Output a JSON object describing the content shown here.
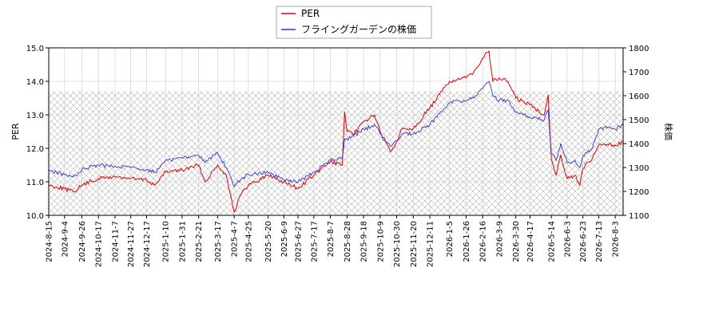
{
  "chart_data": {
    "type": "line",
    "legend": {
      "placement": "top-center",
      "entries": [
        "PER",
        "フライングガーデンの株価"
      ]
    },
    "grid": true,
    "hatch_band": {
      "y_left_range": [
        10.0,
        13.7
      ],
      "note_color": "#999999"
    },
    "y_left": {
      "label": "PER",
      "ylim": [
        10.0,
        15.0
      ],
      "ticks": [
        "10.0",
        "11.0",
        "12.0",
        "13.0",
        "14.0",
        "15.0"
      ]
    },
    "y_right": {
      "label": "株価",
      "ylim": [
        1100,
        1800
      ],
      "ticks": [
        "1100",
        "1200",
        "1300",
        "1400",
        "1500",
        "1600",
        "1700",
        "1800"
      ]
    },
    "x": {
      "start": "2024-08-15",
      "end": "2026-08-13",
      "tick_labels": [
        "2024-8-15",
        "2024-9-4",
        "2024-9-26",
        "2024-10-17",
        "2024-11-7",
        "2024-11-27",
        "2024-12-17",
        "2025-1-10",
        "2025-1-31",
        "2025-2-21",
        "2025-3-17",
        "2025-4-7",
        "2025-4-25",
        "2025-5-20",
        "2025-6-9",
        "2025-6-27",
        "2025-7-17",
        "2025-8-7",
        "2025-8-28",
        "2025-9-18",
        "2025-10-9",
        "2025-10-30",
        "2025-11-20",
        "2025-12-11",
        "2026-1-5",
        "2026-1-26",
        "2026-2-16",
        "2026-3-9",
        "2026-3-30",
        "2026-4-17",
        "2026-5-14",
        "2026-6-3",
        "2026-6-23",
        "2026-7-13",
        "2026-8-3"
      ]
    },
    "series": [
      {
        "name": "PER",
        "axis": "left",
        "color": "#dd0000",
        "points": [
          [
            "2024-08-15",
            10.9
          ],
          [
            "2024-09-04",
            10.8
          ],
          [
            "2024-09-15",
            10.7
          ],
          [
            "2024-09-26",
            10.9
          ],
          [
            "2024-10-17",
            11.1
          ],
          [
            "2024-11-07",
            11.15
          ],
          [
            "2024-11-27",
            11.1
          ],
          [
            "2024-12-17",
            11.05
          ],
          [
            "2024-12-28",
            10.9
          ],
          [
            "2025-01-10",
            11.3
          ],
          [
            "2025-01-31",
            11.35
          ],
          [
            "2025-02-21",
            11.5
          ],
          [
            "2025-03-01",
            11.0
          ],
          [
            "2025-03-17",
            11.5
          ],
          [
            "2025-03-28",
            11.2
          ],
          [
            "2025-04-07",
            10.1
          ],
          [
            "2025-04-15",
            10.6
          ],
          [
            "2025-04-25",
            10.9
          ],
          [
            "2025-05-20",
            11.2
          ],
          [
            "2025-06-09",
            11.0
          ],
          [
            "2025-06-27",
            10.8
          ],
          [
            "2025-07-17",
            11.2
          ],
          [
            "2025-08-07",
            11.6
          ],
          [
            "2025-08-22",
            11.5
          ],
          [
            "2025-08-25",
            13.1
          ],
          [
            "2025-08-28",
            12.5
          ],
          [
            "2025-09-05",
            12.4
          ],
          [
            "2025-09-18",
            12.8
          ],
          [
            "2025-10-02",
            13.0
          ],
          [
            "2025-10-09",
            12.5
          ],
          [
            "2025-10-22",
            11.9
          ],
          [
            "2025-10-30",
            12.2
          ],
          [
            "2025-11-06",
            12.6
          ],
          [
            "2025-11-20",
            12.6
          ],
          [
            "2025-12-11",
            13.2
          ],
          [
            "2025-12-20",
            13.5
          ],
          [
            "2026-01-05",
            14.0
          ],
          [
            "2026-01-26",
            14.1
          ],
          [
            "2026-02-05",
            14.3
          ],
          [
            "2026-02-16",
            14.7
          ],
          [
            "2026-02-24",
            14.9
          ],
          [
            "2026-03-01",
            14.0
          ],
          [
            "2026-03-09",
            14.1
          ],
          [
            "2026-03-20",
            14.0
          ],
          [
            "2026-03-30",
            13.5
          ],
          [
            "2026-04-17",
            13.3
          ],
          [
            "2026-05-05",
            13.0
          ],
          [
            "2026-05-10",
            13.6
          ],
          [
            "2026-05-14",
            11.7
          ],
          [
            "2026-05-20",
            11.2
          ],
          [
            "2026-05-26",
            11.8
          ],
          [
            "2026-06-03",
            11.1
          ],
          [
            "2026-06-13",
            11.2
          ],
          [
            "2026-06-19",
            10.9
          ],
          [
            "2026-06-23",
            11.4
          ],
          [
            "2026-07-05",
            11.7
          ],
          [
            "2026-07-13",
            12.1
          ],
          [
            "2026-07-25",
            12.1
          ],
          [
            "2026-08-03",
            12.1
          ],
          [
            "2026-08-13",
            12.2
          ]
        ]
      },
      {
        "name": "フライングガーデンの株価",
        "axis": "right",
        "color": "#3333cc",
        "points": [
          [
            "2024-08-15",
            1290
          ],
          [
            "2024-09-04",
            1270
          ],
          [
            "2024-09-15",
            1260
          ],
          [
            "2024-09-26",
            1290
          ],
          [
            "2024-10-17",
            1310
          ],
          [
            "2024-11-07",
            1305
          ],
          [
            "2024-11-27",
            1300
          ],
          [
            "2024-12-17",
            1290
          ],
          [
            "2024-12-28",
            1280
          ],
          [
            "2025-01-10",
            1330
          ],
          [
            "2025-01-31",
            1340
          ],
          [
            "2025-02-21",
            1350
          ],
          [
            "2025-03-01",
            1320
          ],
          [
            "2025-03-17",
            1360
          ],
          [
            "2025-03-28",
            1300
          ],
          [
            "2025-04-07",
            1220
          ],
          [
            "2025-04-15",
            1250
          ],
          [
            "2025-04-25",
            1270
          ],
          [
            "2025-05-20",
            1280
          ],
          [
            "2025-06-09",
            1250
          ],
          [
            "2025-06-27",
            1240
          ],
          [
            "2025-07-17",
            1280
          ],
          [
            "2025-08-07",
            1330
          ],
          [
            "2025-08-22",
            1340
          ],
          [
            "2025-08-25",
            1420
          ],
          [
            "2025-08-28",
            1420
          ],
          [
            "2025-09-05",
            1430
          ],
          [
            "2025-09-18",
            1460
          ],
          [
            "2025-10-02",
            1480
          ],
          [
            "2025-10-09",
            1440
          ],
          [
            "2025-10-22",
            1390
          ],
          [
            "2025-10-30",
            1410
          ],
          [
            "2025-11-06",
            1440
          ],
          [
            "2025-11-20",
            1440
          ],
          [
            "2025-12-11",
            1480
          ],
          [
            "2025-12-20",
            1510
          ],
          [
            "2026-01-05",
            1570
          ],
          [
            "2026-01-26",
            1580
          ],
          [
            "2026-02-05",
            1590
          ],
          [
            "2026-02-16",
            1630
          ],
          [
            "2026-02-24",
            1660
          ],
          [
            "2026-03-01",
            1600
          ],
          [
            "2026-03-09",
            1580
          ],
          [
            "2026-03-20",
            1580
          ],
          [
            "2026-03-30",
            1530
          ],
          [
            "2026-04-17",
            1510
          ],
          [
            "2026-05-05",
            1500
          ],
          [
            "2026-05-10",
            1540
          ],
          [
            "2026-05-14",
            1360
          ],
          [
            "2026-05-20",
            1330
          ],
          [
            "2026-05-26",
            1400
          ],
          [
            "2026-06-03",
            1320
          ],
          [
            "2026-06-13",
            1330
          ],
          [
            "2026-06-19",
            1300
          ],
          [
            "2026-06-23",
            1350
          ],
          [
            "2026-07-05",
            1380
          ],
          [
            "2026-07-13",
            1460
          ],
          [
            "2026-07-25",
            1470
          ],
          [
            "2026-08-03",
            1460
          ],
          [
            "2026-08-13",
            1480
          ]
        ]
      }
    ]
  }
}
